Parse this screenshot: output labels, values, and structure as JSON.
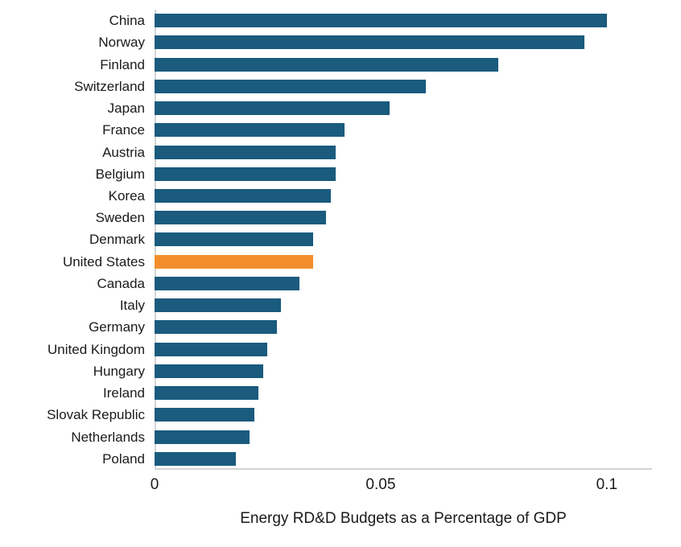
{
  "chart_data": {
    "type": "bar",
    "orientation": "horizontal",
    "title": "",
    "xlabel": "Energy RD&D Budgets as a Percentage of GDP",
    "ylabel": "",
    "xlim": [
      0,
      0.11
    ],
    "grid": false,
    "legend": "none",
    "bar_color": "#1a5b7e",
    "highlight": {
      "category": "United States",
      "color": "#f28e2c"
    },
    "x_ticks": [
      {
        "label": "0",
        "value": 0
      },
      {
        "label": "0.05",
        "value": 0.05
      },
      {
        "label": "0.1",
        "value": 0.1
      }
    ],
    "categories": [
      "China",
      "Norway",
      "Finland",
      "Switzerland",
      "Japan",
      "France",
      "Austria",
      "Belgium",
      "Korea",
      "Sweden",
      "Denmark",
      "United States",
      "Canada",
      "Italy",
      "Germany",
      "United Kingdom",
      "Hungary",
      "Ireland",
      "Slovak Republic",
      "Netherlands",
      "Poland"
    ],
    "values": [
      0.1,
      0.095,
      0.076,
      0.06,
      0.052,
      0.042,
      0.04,
      0.04,
      0.039,
      0.038,
      0.035,
      0.035,
      0.032,
      0.028,
      0.027,
      0.025,
      0.024,
      0.023,
      0.022,
      0.021,
      0.018
    ]
  }
}
